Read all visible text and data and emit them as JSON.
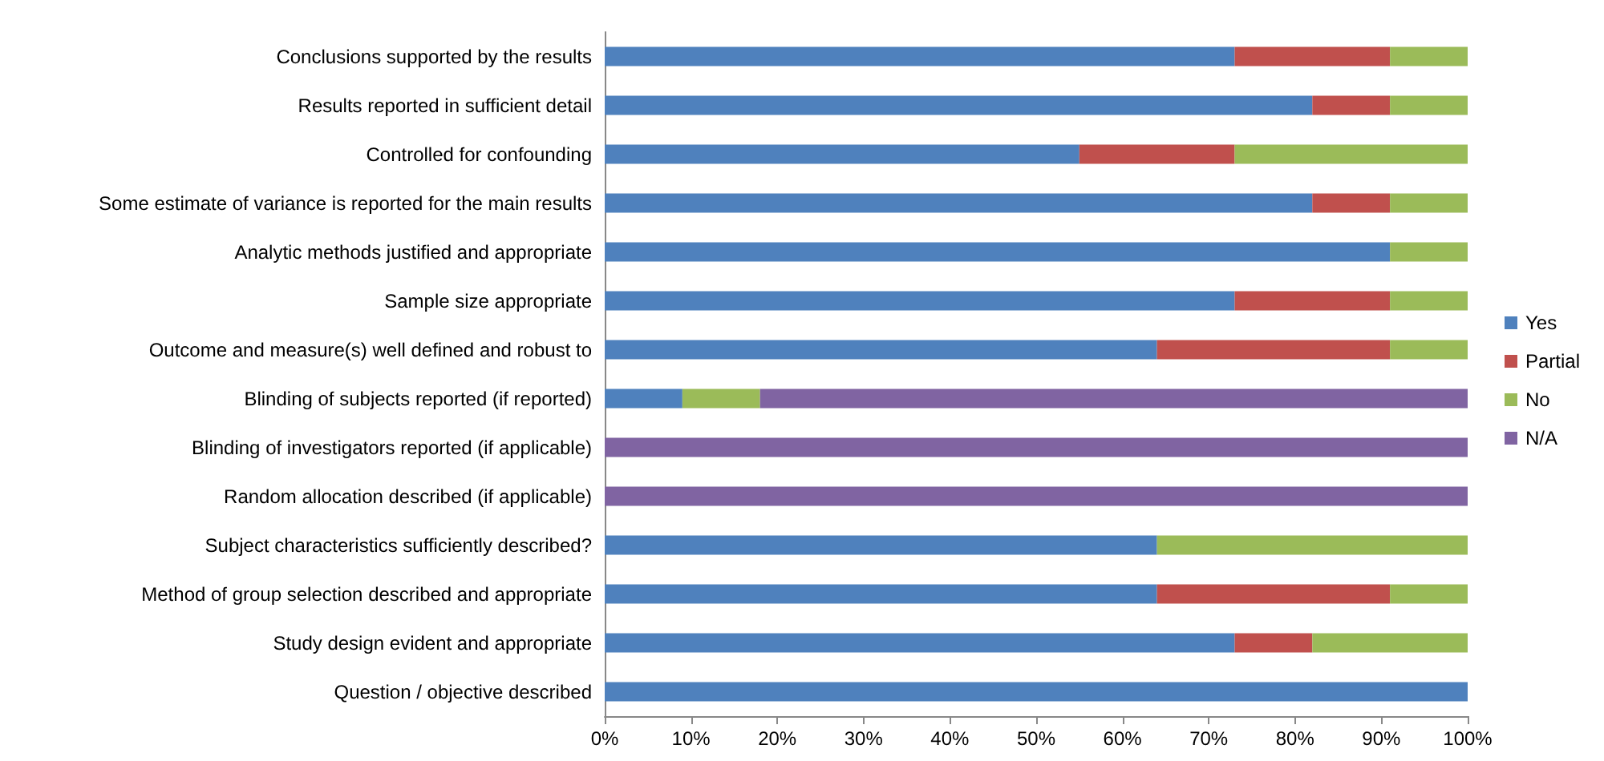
{
  "chart_data": {
    "type": "bar",
    "orientation": "horizontal",
    "stacked": true,
    "legend": "right",
    "grid": false,
    "categories": [
      "Conclusions supported by the results",
      "Results reported in sufficient detail",
      "Controlled for confounding",
      "Some estimate of variance is reported for the main results",
      "Analytic methods justified and appropriate",
      "Sample size appropriate",
      "Outcome and measure(s) well defined and robust to",
      "Blinding of subjects reported (if reported)",
      "Blinding of investigators reported (if applicable)",
      "Random allocation described (if applicable)",
      "Subject characteristics sufficiently described?",
      "Method of group selection described and appropriate",
      "Study design evident and appropriate",
      "Question / objective described"
    ],
    "series": [
      {
        "name": "Yes",
        "color": "#4f81bd",
        "values": [
          73,
          82,
          55,
          82,
          91,
          73,
          64,
          9,
          0,
          0,
          64,
          64,
          73,
          100
        ]
      },
      {
        "name": "Partial",
        "color": "#c0504d",
        "values": [
          18,
          9,
          18,
          9,
          0,
          18,
          27,
          0,
          0,
          0,
          0,
          27,
          9,
          0
        ]
      },
      {
        "name": "No",
        "color": "#9bbb59",
        "values": [
          9,
          9,
          27,
          9,
          9,
          9,
          9,
          9,
          0,
          0,
          36,
          9,
          18,
          0
        ]
      },
      {
        "name": "N/A",
        "color": "#8064a2",
        "values": [
          0,
          0,
          0,
          0,
          0,
          0,
          0,
          82,
          100,
          100,
          0,
          0,
          0,
          0
        ]
      }
    ],
    "xlim": [
      0,
      100
    ],
    "xticks": [
      {
        "value": 0,
        "label": "0%"
      },
      {
        "value": 10,
        "label": "10%"
      },
      {
        "value": 20,
        "label": "20%"
      },
      {
        "value": 30,
        "label": "30%"
      },
      {
        "value": 40,
        "label": "40%"
      },
      {
        "value": 50,
        "label": "50%"
      },
      {
        "value": 60,
        "label": "60%"
      },
      {
        "value": 70,
        "label": "70%"
      },
      {
        "value": 80,
        "label": "80%"
      },
      {
        "value": 90,
        "label": "90%"
      },
      {
        "value": 100,
        "label": "100%"
      }
    ]
  }
}
